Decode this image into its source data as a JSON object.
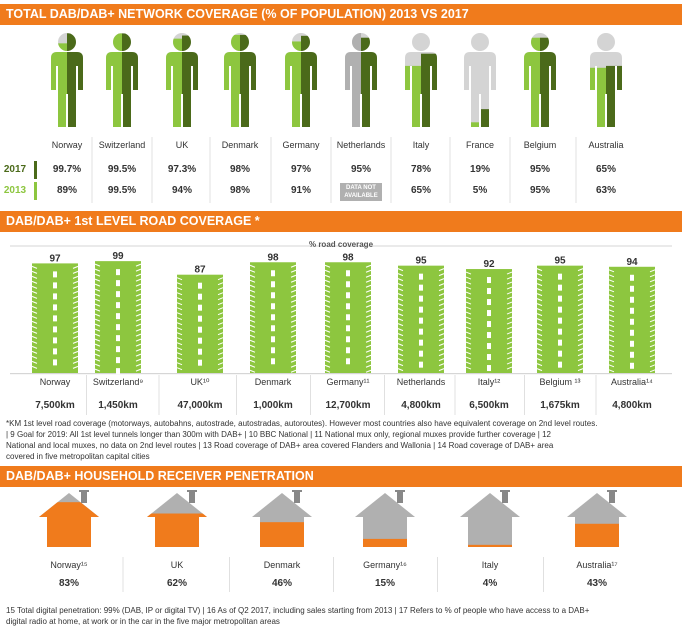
{
  "colors": {
    "orange": "#f07b1c",
    "green_light": "#8dc63f",
    "green_dark": "#4b6a1a",
    "gray": "#b0b0b0",
    "gray_light": "#d4d4d4"
  },
  "section1": {
    "title": "TOTAL DAB/DAB+ NETWORK COVERAGE (% OF POPULATION) 2013 VS 2017",
    "year_2017": "2017",
    "year_2013": "2013",
    "countries": [
      {
        "name": "Norway",
        "v2017": "99.7%",
        "v2013": "89%"
      },
      {
        "name": "Switzerland",
        "v2017": "99.5%",
        "v2013": "99.5%"
      },
      {
        "name": "UK",
        "v2017": "97.3%",
        "v2013": "94%"
      },
      {
        "name": "Denmark",
        "v2017": "98%",
        "v2013": "98%"
      },
      {
        "name": "Germany",
        "v2017": "97%",
        "v2013": "91%"
      },
      {
        "name": "Netherlands",
        "v2017": "95%",
        "v2013": "DATA NOT AVAILABLE"
      },
      {
        "name": "Italy",
        "v2017": "78%",
        "v2013": "65%"
      },
      {
        "name": "France",
        "v2017": "19%",
        "v2013": "5%"
      },
      {
        "name": "Belgium",
        "v2017": "95%",
        "v2013": "95%"
      },
      {
        "name": "Australia",
        "v2017": "65%",
        "v2013": "63%"
      }
    ]
  },
  "section2": {
    "title": "DAB/DAB+ 1st LEVEL ROAD COVERAGE *",
    "subtitle": "% road coverage",
    "footnote_lines": [
      "*KM 1st level road coverage (motorways, autobahns, autostrade, autostradas, autoroutes). However most countries also have equivalent coverage on 2nd level routes.",
      "| 9 Goal for 2019: All 1st level tunnels longer than 300m with DAB+ | 10 BBC National | 11 National mux only, regional muxes provide further coverage | 12",
      "National and local muxes, no data on 2nd level routes | 13 Road coverage of DAB+ area covered Flanders and Wallonia | 14 Road coverage of DAB+ area",
      "covered in five metropolitan capital cities"
    ]
  },
  "section3": {
    "title": "DAB/DAB+ HOUSEHOLD RECEIVER PENETRATION",
    "footnote_lines": [
      "15 Total digital penetration: 99% (DAB, IP or digital TV) | 16 As of Q2 2017, including sales starting from 2013 | 17 Refers to % of people who have access to a DAB+",
      "digital radio at home, at work or in the car in the five major metropolitan areas"
    ]
  },
  "chart_data": [
    {
      "type": "bar",
      "title": "TOTAL DAB/DAB+ NETWORK COVERAGE (% OF POPULATION) 2013 VS 2017",
      "categories": [
        "Norway",
        "Switzerland",
        "UK",
        "Denmark",
        "Germany",
        "Netherlands",
        "Italy",
        "France",
        "Belgium",
        "Australia"
      ],
      "series": [
        {
          "name": "2017",
          "values": [
            99.7,
            99.5,
            97.3,
            98,
            97,
            95,
            78,
            19,
            95,
            65
          ]
        },
        {
          "name": "2013",
          "values": [
            89,
            99.5,
            94,
            98,
            91,
            null,
            65,
            5,
            95,
            63
          ]
        }
      ],
      "ylim": [
        0,
        100
      ]
    },
    {
      "type": "bar",
      "title": "DAB/DAB+ 1st LEVEL ROAD COVERAGE *",
      "subtitle": "% road coverage",
      "categories": [
        "Norway",
        "Switzerland",
        "UK",
        "Denmark",
        "Germany",
        "Netherlands",
        "Italy",
        "Belgium",
        "Australia"
      ],
      "category_labels": [
        "Norway",
        "Switzerland⁹",
        "UK¹⁰",
        "Denmark",
        "Germany¹¹",
        "Netherlands",
        "Italy¹²",
        "Belgium ¹³",
        "Australia¹⁴"
      ],
      "values": [
        97,
        99,
        87,
        98,
        98,
        95,
        92,
        95,
        94
      ],
      "km": [
        "7,500km",
        "1,450km",
        "47,000km",
        "1,000km",
        "12,700km",
        "4,800km",
        "6,500km",
        "1,675km",
        "4,800km"
      ],
      "ylim": [
        0,
        100
      ]
    },
    {
      "type": "bar",
      "title": "DAB/DAB+ HOUSEHOLD RECEIVER PENETRATION",
      "categories": [
        "Norway",
        "UK",
        "Denmark",
        "Germany",
        "Italy",
        "Australia"
      ],
      "category_labels": [
        "Norway¹⁵",
        "UK",
        "Denmark",
        "Germany¹⁶",
        "Italy",
        "Australia¹⁷"
      ],
      "values": [
        83,
        62,
        46,
        15,
        4,
        43
      ],
      "value_labels": [
        "83%",
        "62%",
        "46%",
        "15%",
        "4%",
        "43%"
      ],
      "ylim": [
        0,
        100
      ]
    }
  ]
}
